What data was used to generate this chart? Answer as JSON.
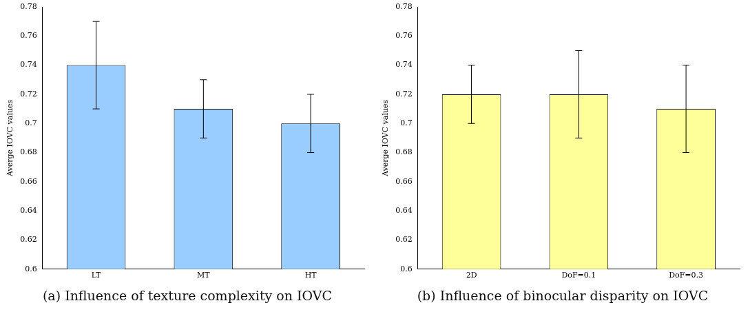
{
  "chart_data": [
    {
      "type": "bar",
      "title": "(a) Influence of texture complexity on IOVC",
      "ylabel": "Averge IOVC values",
      "categories": [
        "LT",
        "MT",
        "HT"
      ],
      "series": [
        {
          "color": "#99ccff",
          "values": [
            0.74,
            0.71,
            0.7
          ],
          "errors": [
            0.03,
            0.02,
            0.02
          ]
        }
      ],
      "ylim": [
        0.6,
        0.78
      ],
      "yticks": [
        0.6,
        0.62,
        0.64,
        0.66,
        0.68,
        0.7,
        0.72,
        0.74,
        0.76,
        0.78
      ],
      "grid": false,
      "legend": false
    },
    {
      "type": "bar",
      "title": "(b) Influence of binocular disparity on IOVC",
      "ylabel": "Averge IOVC values",
      "categories": [
        "2D",
        "DoF=0.1",
        "DoF=0.3"
      ],
      "series": [
        {
          "color": "#ffff99",
          "values": [
            0.72,
            0.72,
            0.71
          ],
          "errors": [
            0.02,
            0.03,
            0.03
          ]
        }
      ],
      "ylim": [
        0.6,
        0.78
      ],
      "yticks": [
        0.6,
        0.62,
        0.64,
        0.66,
        0.68,
        0.7,
        0.72,
        0.74,
        0.76,
        0.78
      ],
      "grid": false,
      "legend": false
    }
  ]
}
